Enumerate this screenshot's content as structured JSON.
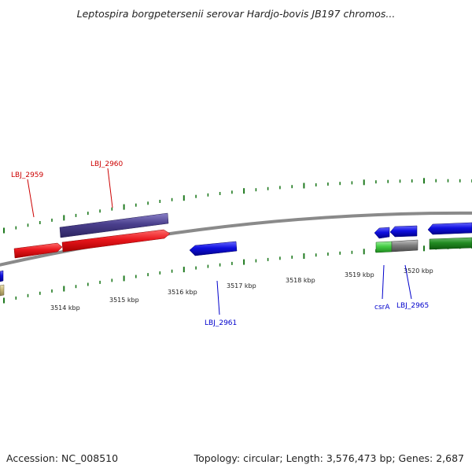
{
  "title": "Leptospira borgpetersenii serovar Hardjo-bovis JB197 chromos...",
  "footer": {
    "accession": "Accession: NC_008510",
    "summary": "Topology: circular; Length: 3,576,473 bp; Genes: 2,687"
  },
  "colors": {
    "backbone": "#8a8a8a",
    "tick": "#1f7a1f",
    "red": "#e8161c",
    "purple": "#4a3f8c",
    "blue": "#1010e0",
    "green_light": "#44cc44",
    "green_dark": "#228b22",
    "gray": "#7f7f7f",
    "tan": "#c8b878",
    "label_red": "#cc0000",
    "label_blue": "#0000cc"
  },
  "scale_labels": [
    "3514 kbp",
    "3515 kbp",
    "3516 kbp",
    "3517 kbp",
    "3518 kbp",
    "3519 kbp",
    "3520 kbp"
  ],
  "genes": [
    {
      "name": "LBJ_2959",
      "color": "red",
      "strand": "+",
      "track": "inner-top"
    },
    {
      "name": "LBJ_2960",
      "color": "red",
      "strand": "+",
      "track": "inner-top"
    },
    {
      "name": "",
      "color": "purple",
      "strand": "+",
      "track": "outer-top"
    },
    {
      "name": "LBJ_2961",
      "color": "blue",
      "strand": "-",
      "track": "inner-bottom"
    },
    {
      "name": "csrA",
      "color": "blue",
      "strand": "-",
      "track": "inner-top"
    },
    {
      "name": "LBJ_2965",
      "color": "blue",
      "strand": "-",
      "track": "inner-top"
    },
    {
      "name": "",
      "color": "blue",
      "strand": "-",
      "track": "inner-top"
    },
    {
      "name": "",
      "color": "green_light",
      "strand": "+",
      "track": "inner-bottom"
    },
    {
      "name": "",
      "color": "gray",
      "strand": "+",
      "track": "inner-bottom"
    },
    {
      "name": "",
      "color": "green_dark",
      "strand": "+",
      "track": "inner-bottom"
    },
    {
      "name": "",
      "color": "blue",
      "strand": "-",
      "track": "inner-bottom"
    },
    {
      "name": "",
      "color": "tan",
      "strand": "+",
      "track": "inner-bottom"
    }
  ]
}
